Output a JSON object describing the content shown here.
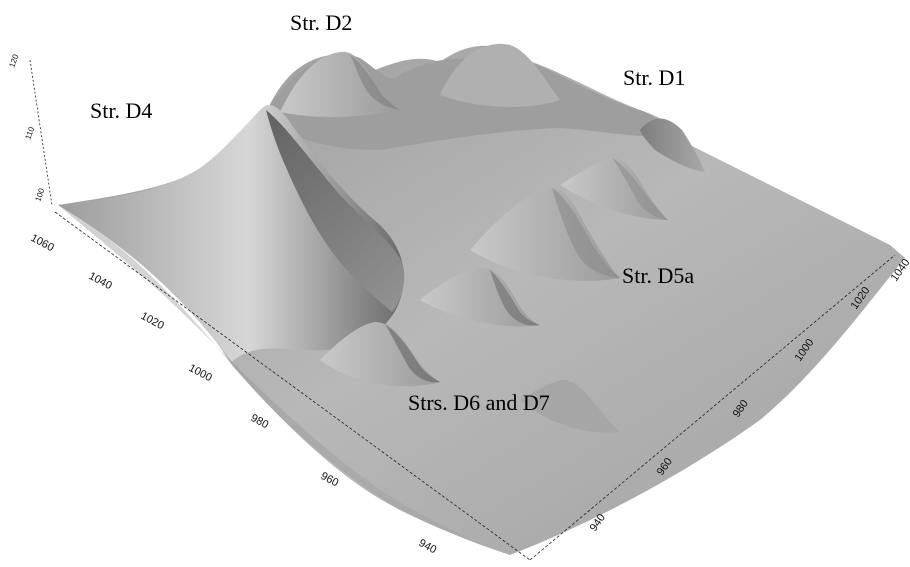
{
  "labels": {
    "d2": "Str. D2",
    "d1": "Str. D1",
    "d4": "Str. D4",
    "d5a": "Str. D5a",
    "d6d7": "Strs. D6 and D7"
  },
  "axes": {
    "left_ticks": [
      "1060",
      "1040",
      "1020",
      "1000",
      "980",
      "960",
      "940"
    ],
    "right_ticks": [
      "940",
      "960",
      "980",
      "1000",
      "1020",
      "1040"
    ],
    "z_ticks": [
      "120",
      "110",
      "100"
    ]
  }
}
